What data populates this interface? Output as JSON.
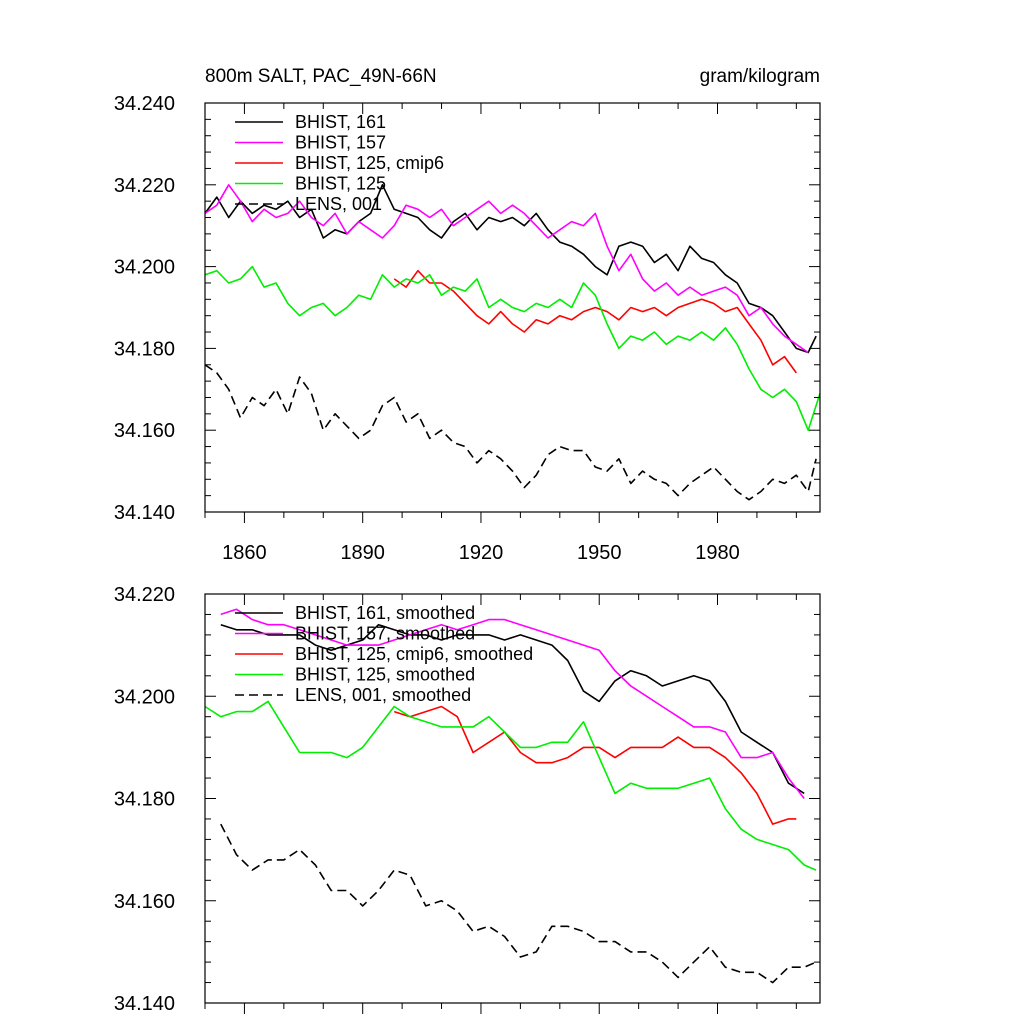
{
  "chart_data": [
    {
      "type": "line",
      "title": "800m SALT, PAC_49N-66N",
      "units": "gram/kilogram",
      "xlim": [
        1850,
        2006
      ],
      "ylim": [
        34.14,
        34.24
      ],
      "yticks": [
        34.14,
        34.16,
        34.18,
        34.2,
        34.22,
        34.24
      ],
      "ytick_labels": [
        "34.140",
        "34.160",
        "34.180",
        "34.200",
        "34.220",
        "34.240"
      ],
      "xticks": [
        1860,
        1890,
        1920,
        1950,
        1980
      ],
      "xtick_labels": [
        "1860",
        "1890",
        "1920",
        "1950",
        "1980"
      ],
      "legend_position": "top-left",
      "series": [
        {
          "name": "BHIST, 161",
          "color": "#000000",
          "dash": "solid",
          "x": [
            1850,
            1853,
            1856,
            1859,
            1862,
            1865,
            1868,
            1871,
            1874,
            1877,
            1880,
            1883,
            1886,
            1889,
            1892,
            1895,
            1898,
            1901,
            1904,
            1907,
            1910,
            1913,
            1916,
            1919,
            1922,
            1925,
            1928,
            1931,
            1934,
            1937,
            1940,
            1943,
            1946,
            1949,
            1952,
            1955,
            1958,
            1961,
            1964,
            1967,
            1970,
            1973,
            1976,
            1979,
            1982,
            1985,
            1988,
            1991,
            1994,
            1997,
            2000,
            2003,
            2005
          ],
          "y": [
            34.213,
            34.217,
            34.212,
            34.216,
            34.213,
            34.215,
            34.214,
            34.216,
            34.212,
            34.214,
            34.207,
            34.209,
            34.208,
            34.211,
            34.213,
            34.22,
            34.214,
            34.213,
            34.212,
            34.209,
            34.207,
            34.211,
            34.213,
            34.209,
            34.212,
            34.211,
            34.212,
            34.21,
            34.213,
            34.209,
            34.206,
            34.205,
            34.203,
            34.2,
            34.198,
            34.205,
            34.206,
            34.205,
            34.201,
            34.203,
            34.199,
            34.205,
            34.202,
            34.201,
            34.198,
            34.196,
            34.191,
            34.19,
            34.188,
            34.184,
            34.18,
            34.179,
            34.183
          ]
        },
        {
          "name": "BHIST, 157",
          "color": "#ff00ff",
          "dash": "solid",
          "x": [
            1850,
            1853,
            1856,
            1859,
            1862,
            1865,
            1868,
            1871,
            1874,
            1877,
            1880,
            1883,
            1886,
            1889,
            1892,
            1895,
            1898,
            1901,
            1904,
            1907,
            1910,
            1913,
            1916,
            1919,
            1922,
            1925,
            1928,
            1931,
            1934,
            1937,
            1940,
            1943,
            1946,
            1949,
            1952,
            1955,
            1958,
            1961,
            1964,
            1967,
            1970,
            1973,
            1976,
            1979,
            1982,
            1985,
            1988,
            1991,
            1994,
            1997,
            2000,
            2003
          ],
          "y": [
            34.213,
            34.215,
            34.22,
            34.216,
            34.211,
            34.214,
            34.212,
            34.213,
            34.216,
            34.212,
            34.21,
            34.213,
            34.208,
            34.211,
            34.209,
            34.207,
            34.21,
            34.215,
            34.214,
            34.212,
            34.214,
            34.21,
            34.212,
            34.214,
            34.216,
            34.213,
            34.215,
            34.213,
            34.21,
            34.207,
            34.209,
            34.211,
            34.21,
            34.213,
            34.205,
            34.199,
            34.203,
            34.197,
            34.194,
            34.196,
            34.193,
            34.195,
            34.193,
            34.194,
            34.195,
            34.193,
            34.188,
            34.19,
            34.186,
            34.183,
            34.181,
            34.179
          ]
        },
        {
          "name": "BHIST, 125, cmip6",
          "color": "#ff0000",
          "dash": "solid",
          "x": [
            1898,
            1901,
            1904,
            1907,
            1910,
            1913,
            1916,
            1919,
            1922,
            1925,
            1928,
            1931,
            1934,
            1937,
            1940,
            1943,
            1946,
            1949,
            1952,
            1955,
            1958,
            1961,
            1964,
            1967,
            1970,
            1973,
            1976,
            1979,
            1982,
            1985,
            1988,
            1991,
            1994,
            1997,
            2000
          ],
          "y": [
            34.197,
            34.195,
            34.199,
            34.196,
            34.196,
            34.194,
            34.191,
            34.188,
            34.186,
            34.189,
            34.186,
            34.184,
            34.187,
            34.186,
            34.188,
            34.187,
            34.189,
            34.19,
            34.189,
            34.187,
            34.19,
            34.189,
            34.19,
            34.188,
            34.19,
            34.191,
            34.192,
            34.191,
            34.189,
            34.19,
            34.186,
            34.182,
            34.176,
            34.178,
            34.174
          ]
        },
        {
          "name": "BHIST, 125",
          "color": "#00ee00",
          "dash": "solid",
          "x": [
            1850,
            1853,
            1856,
            1859,
            1862,
            1865,
            1868,
            1871,
            1874,
            1877,
            1880,
            1883,
            1886,
            1889,
            1892,
            1895,
            1898,
            1901,
            1904,
            1907,
            1910,
            1913,
            1916,
            1919,
            1922,
            1925,
            1928,
            1931,
            1934,
            1937,
            1940,
            1943,
            1946,
            1949,
            1952,
            1955,
            1958,
            1961,
            1964,
            1967,
            1970,
            1973,
            1976,
            1979,
            1982,
            1985,
            1988,
            1991,
            1994,
            1997,
            2000,
            2003,
            2006
          ],
          "y": [
            34.198,
            34.199,
            34.196,
            34.197,
            34.2,
            34.195,
            34.196,
            34.191,
            34.188,
            34.19,
            34.191,
            34.188,
            34.19,
            34.193,
            34.192,
            34.198,
            34.195,
            34.197,
            34.196,
            34.198,
            34.193,
            34.195,
            34.194,
            34.197,
            34.19,
            34.192,
            34.19,
            34.189,
            34.191,
            34.19,
            34.192,
            34.19,
            34.196,
            34.193,
            34.186,
            34.18,
            34.183,
            34.182,
            34.184,
            34.181,
            34.183,
            34.182,
            34.184,
            34.182,
            34.185,
            34.181,
            34.175,
            34.17,
            34.168,
            34.17,
            34.167,
            34.16,
            34.169
          ]
        },
        {
          "name": "LENS, 001",
          "color": "#000000",
          "dash": "dashed",
          "x": [
            1850,
            1853,
            1856,
            1859,
            1862,
            1865,
            1868,
            1871,
            1874,
            1877,
            1880,
            1883,
            1886,
            1889,
            1892,
            1895,
            1898,
            1901,
            1904,
            1907,
            1910,
            1913,
            1916,
            1919,
            1922,
            1925,
            1928,
            1931,
            1934,
            1937,
            1940,
            1943,
            1946,
            1949,
            1952,
            1955,
            1958,
            1961,
            1964,
            1967,
            1970,
            1973,
            1976,
            1979,
            1982,
            1985,
            1988,
            1991,
            1994,
            1997,
            2000,
            2003,
            2005
          ],
          "y": [
            34.176,
            34.174,
            34.17,
            34.163,
            34.168,
            34.166,
            34.17,
            34.164,
            34.173,
            34.169,
            34.16,
            34.164,
            34.161,
            34.158,
            34.16,
            34.166,
            34.168,
            34.162,
            34.164,
            34.158,
            34.16,
            34.157,
            34.156,
            34.152,
            34.155,
            34.153,
            34.15,
            34.146,
            34.149,
            34.154,
            34.156,
            34.155,
            34.155,
            34.151,
            34.15,
            34.153,
            34.147,
            34.15,
            34.148,
            34.147,
            34.144,
            34.147,
            34.149,
            34.151,
            34.148,
            34.145,
            34.143,
            34.145,
            34.148,
            34.147,
            34.149,
            34.145,
            34.153
          ]
        }
      ]
    },
    {
      "type": "line",
      "title": "",
      "xlim": [
        1850,
        2006
      ],
      "ylim": [
        34.14,
        34.22
      ],
      "yticks": [
        34.14,
        34.16,
        34.18,
        34.2,
        34.22
      ],
      "ytick_labels": [
        "34.140",
        "34.160",
        "34.180",
        "34.200",
        "34.220"
      ],
      "xticks": [
        1860,
        1890,
        1920,
        1950,
        1980
      ],
      "xtick_labels": [],
      "legend_position": "top-left",
      "series": [
        {
          "name": "BHIST, 161, smoothed",
          "color": "#000000",
          "dash": "solid",
          "x": [
            1854,
            1858,
            1862,
            1866,
            1870,
            1874,
            1878,
            1882,
            1886,
            1890,
            1894,
            1898,
            1902,
            1906,
            1910,
            1914,
            1918,
            1922,
            1926,
            1930,
            1934,
            1938,
            1942,
            1946,
            1950,
            1954,
            1958,
            1962,
            1966,
            1970,
            1974,
            1978,
            1982,
            1986,
            1990,
            1994,
            1998,
            2002
          ],
          "y": [
            34.214,
            34.213,
            34.213,
            34.212,
            34.212,
            34.212,
            34.21,
            34.209,
            34.21,
            34.211,
            34.214,
            34.213,
            34.212,
            34.212,
            34.211,
            34.212,
            34.212,
            34.212,
            34.211,
            34.212,
            34.211,
            34.21,
            34.207,
            34.201,
            34.199,
            34.203,
            34.205,
            34.204,
            34.202,
            34.203,
            34.204,
            34.203,
            34.199,
            34.193,
            34.191,
            34.189,
            34.183,
            34.181
          ]
        },
        {
          "name": "BHIST, 157, smoothed",
          "color": "#ff00ff",
          "dash": "solid",
          "x": [
            1854,
            1858,
            1862,
            1866,
            1870,
            1874,
            1878,
            1882,
            1886,
            1890,
            1894,
            1898,
            1902,
            1906,
            1910,
            1914,
            1918,
            1922,
            1926,
            1930,
            1934,
            1938,
            1942,
            1946,
            1950,
            1954,
            1958,
            1962,
            1966,
            1970,
            1974,
            1978,
            1982,
            1986,
            1990,
            1994,
            1998,
            2002
          ],
          "y": [
            34.216,
            34.217,
            34.215,
            34.214,
            34.214,
            34.213,
            34.212,
            34.211,
            34.21,
            34.21,
            34.21,
            34.211,
            34.212,
            34.213,
            34.214,
            34.213,
            34.214,
            34.215,
            34.215,
            34.214,
            34.213,
            34.212,
            34.211,
            34.21,
            34.209,
            34.205,
            34.202,
            34.2,
            34.198,
            34.196,
            34.194,
            34.194,
            34.193,
            34.188,
            34.188,
            34.189,
            34.184,
            34.18
          ]
        },
        {
          "name": "BHIST, 125, cmip6, smoothed",
          "color": "#ff0000",
          "dash": "solid",
          "x": [
            1898,
            1902,
            1906,
            1910,
            1914,
            1918,
            1922,
            1926,
            1930,
            1934,
            1938,
            1942,
            1946,
            1950,
            1954,
            1958,
            1962,
            1966,
            1970,
            1974,
            1978,
            1982,
            1986,
            1990,
            1994,
            1998,
            2000
          ],
          "y": [
            34.197,
            34.196,
            34.197,
            34.198,
            34.196,
            34.189,
            34.191,
            34.193,
            34.189,
            34.187,
            34.187,
            34.188,
            34.19,
            34.19,
            34.188,
            34.19,
            34.19,
            34.19,
            34.192,
            34.19,
            34.19,
            34.188,
            34.185,
            34.181,
            34.175,
            34.176,
            34.176
          ]
        },
        {
          "name": "BHIST, 125, smoothed",
          "color": "#00ee00",
          "dash": "solid",
          "x": [
            1850,
            1854,
            1858,
            1862,
            1866,
            1870,
            1874,
            1878,
            1882,
            1886,
            1890,
            1894,
            1898,
            1902,
            1906,
            1910,
            1914,
            1918,
            1922,
            1926,
            1930,
            1934,
            1938,
            1942,
            1946,
            1950,
            1954,
            1958,
            1962,
            1966,
            1970,
            1974,
            1978,
            1982,
            1986,
            1990,
            1994,
            1998,
            2002,
            2005
          ],
          "y": [
            34.198,
            34.196,
            34.197,
            34.197,
            34.199,
            34.194,
            34.189,
            34.189,
            34.189,
            34.188,
            34.19,
            34.194,
            34.198,
            34.196,
            34.195,
            34.194,
            34.194,
            34.194,
            34.196,
            34.193,
            34.19,
            34.19,
            34.191,
            34.191,
            34.195,
            34.188,
            34.181,
            34.183,
            34.182,
            34.182,
            34.182,
            34.183,
            34.184,
            34.178,
            34.174,
            34.172,
            34.171,
            34.17,
            34.167,
            34.166
          ]
        },
        {
          "name": "LENS, 001, smoothed",
          "color": "#000000",
          "dash": "dashed",
          "x": [
            1854,
            1858,
            1862,
            1866,
            1870,
            1874,
            1878,
            1882,
            1886,
            1890,
            1894,
            1898,
            1902,
            1906,
            1910,
            1914,
            1918,
            1922,
            1926,
            1930,
            1934,
            1938,
            1942,
            1946,
            1950,
            1954,
            1958,
            1962,
            1966,
            1970,
            1974,
            1978,
            1982,
            1986,
            1990,
            1994,
            1998,
            2002,
            2005
          ],
          "y": [
            34.175,
            34.169,
            34.166,
            34.168,
            34.168,
            34.17,
            34.167,
            34.162,
            34.162,
            34.159,
            34.162,
            34.166,
            34.165,
            34.159,
            34.16,
            34.158,
            34.154,
            34.155,
            34.153,
            34.149,
            34.15,
            34.155,
            34.155,
            34.154,
            34.152,
            34.152,
            34.15,
            34.15,
            34.148,
            34.145,
            34.148,
            34.151,
            34.147,
            34.146,
            34.146,
            34.144,
            34.147,
            34.147,
            34.148
          ]
        }
      ]
    }
  ]
}
